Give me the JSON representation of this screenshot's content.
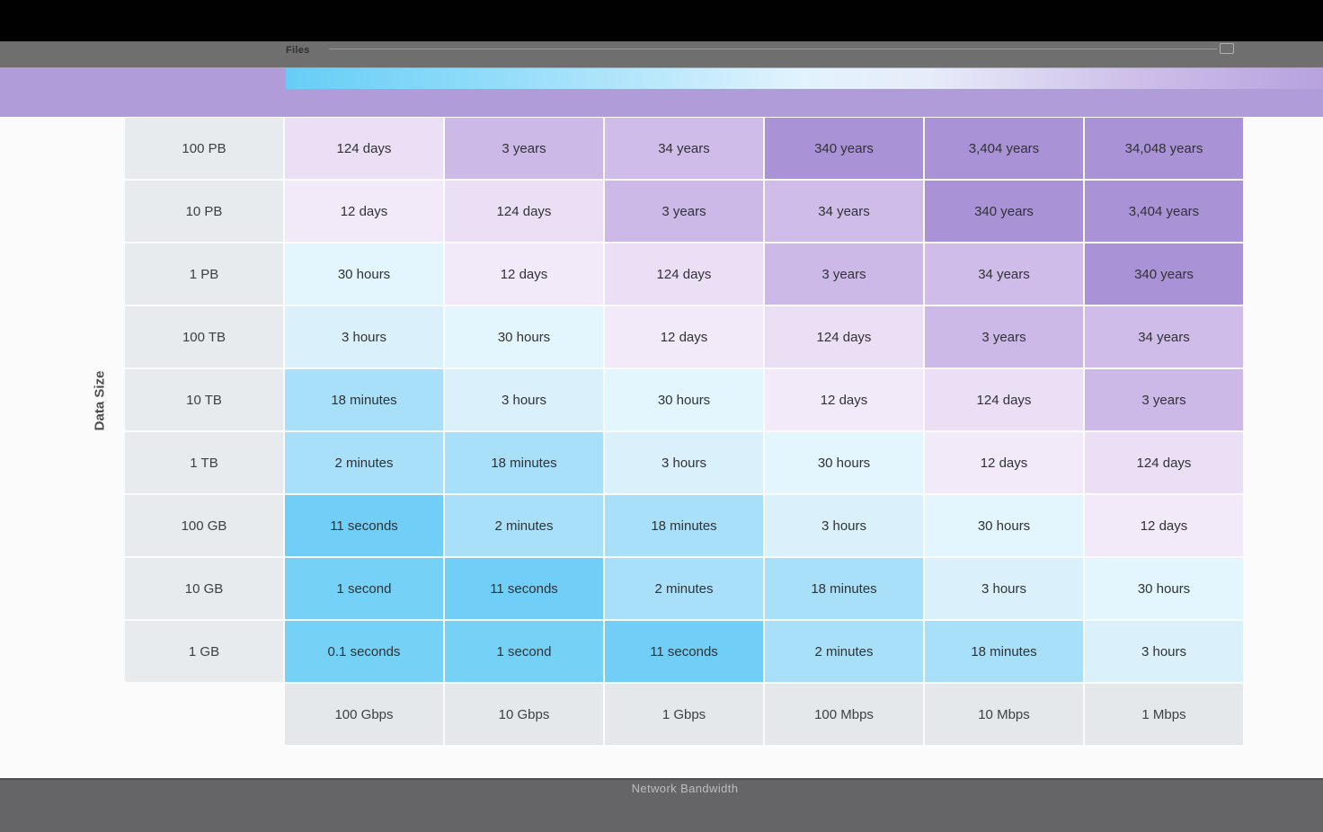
{
  "toolbar": {
    "title": "Files"
  },
  "axes": {
    "y_label": "Data Size",
    "x_label": "Network Bandwidth"
  },
  "chart_data": {
    "type": "heatmap",
    "title": "",
    "xlabel": "Network Bandwidth",
    "ylabel": "Data Size",
    "columns": [
      "100 Gbps",
      "10 Gbps",
      "1 Gbps",
      "100 Mbps",
      "10 Mbps",
      "1 Mbps"
    ],
    "rows": [
      "100 PB",
      "10 PB",
      "1 PB",
      "100 TB",
      "10 TB",
      "1 TB",
      "100 GB",
      "10 GB",
      "1 GB"
    ],
    "values": [
      [
        "124 days",
        "3 years",
        "34 years",
        "340 years",
        "3,404 years",
        "34,048 years"
      ],
      [
        "12 days",
        "124 days",
        "3 years",
        "34 years",
        "340 years",
        "3,404 years"
      ],
      [
        "30 hours",
        "12 days",
        "124 days",
        "3 years",
        "34 years",
        "340 years"
      ],
      [
        "3 hours",
        "30 hours",
        "12 days",
        "124 days",
        "3 years",
        "34 years"
      ],
      [
        "18 minutes",
        "3 hours",
        "30 hours",
        "12 days",
        "124 days",
        "3 years"
      ],
      [
        "2 minutes",
        "18 minutes",
        "3 hours",
        "30 hours",
        "12 days",
        "124 days"
      ],
      [
        "11 seconds",
        "2 minutes",
        "18 minutes",
        "3 hours",
        "30 hours",
        "12 days"
      ],
      [
        "1 second",
        "11 seconds",
        "2 minutes",
        "18 minutes",
        "3 hours",
        "30 hours"
      ],
      [
        "0.1 seconds",
        "1 second",
        "11 seconds",
        "2 minutes",
        "18 minutes",
        "3 hours"
      ]
    ],
    "legend_position": "top",
    "grid": false
  },
  "colors": {
    "topbar": "#010101",
    "toolbar": "#6f6f6f",
    "banner_purple": "#b19cda",
    "gradient_start": "#67cdf6",
    "gradient_end": "#b7a2de",
    "row_header_bg": "#e8ebee",
    "col_footer_bg": "#e5e8eb",
    "bottombar": "#656567",
    "cell_text": "#303234",
    "value_colors": {
      "0.1 seconds": "#76d1f7",
      "1 second": "#76d1f7",
      "11 seconds": "#71cef6",
      "2 minutes": "#a9e0f9",
      "18 minutes": "#a9e0f9",
      "3 hours": "#daf1fc",
      "30 hours": "#e3f5fd",
      "12 days": "#f3eaf9",
      "124 days": "#ebdff5",
      "3 years": "#ccb9e7",
      "34 years": "#cfbce9",
      "340 years": "#aa92d7",
      "3,404 years": "#aa92d7",
      "34,048 years": "#aa92d7"
    }
  }
}
